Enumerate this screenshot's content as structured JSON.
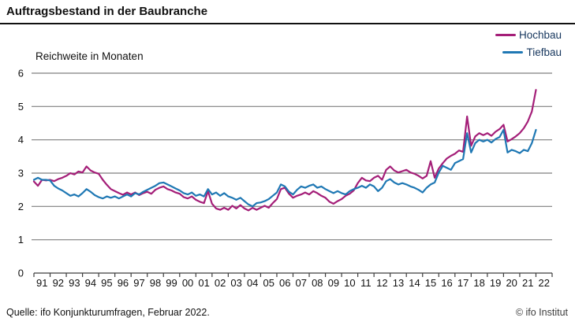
{
  "header": {
    "title": "Auftragsbestand in der Baubranche"
  },
  "axis_title": "Reichweite in Monaten",
  "footer": {
    "source": "Quelle: ifo Konjunkturumfragen, Februar 2022.",
    "copyright": "© ifo Institut"
  },
  "colors": {
    "hochbau": "#a41e78",
    "tiefbau": "#1f78b4",
    "grid": "#7f7f7f",
    "axis": "#3d3d3d",
    "legend_text": "#17375e"
  },
  "chart_data": {
    "type": "line",
    "title": "Auftragsbestand in der Baubranche",
    "xlabel": "",
    "ylabel": "Reichweite in Monaten",
    "ylim": [
      0,
      6
    ],
    "yticks": [
      0,
      1,
      2,
      3,
      4,
      5,
      6
    ],
    "grid": "horizontal",
    "legend_position": "top-right",
    "x_unit": "year (monthly survey, sampled quarterly)",
    "x_start": 1991.0,
    "x_step": 0.25,
    "x_end": 2022.0,
    "categories": [
      "91",
      "92",
      "93",
      "94",
      "95",
      "96",
      "97",
      "98",
      "99",
      "00",
      "01",
      "02",
      "03",
      "04",
      "05",
      "06",
      "07",
      "08",
      "09",
      "10",
      "11",
      "12",
      "13",
      "14",
      "15",
      "16",
      "17",
      "18",
      "19",
      "20",
      "21",
      "22"
    ],
    "series": [
      {
        "name": "Hochbau",
        "color": "#a41e78",
        "values": [
          2.75,
          2.62,
          2.8,
          2.78,
          2.8,
          2.76,
          2.82,
          2.86,
          2.92,
          3.0,
          2.96,
          3.05,
          3.02,
          3.2,
          3.08,
          3.02,
          2.98,
          2.8,
          2.65,
          2.52,
          2.46,
          2.4,
          2.35,
          2.42,
          2.36,
          2.42,
          2.34,
          2.4,
          2.44,
          2.38,
          2.5,
          2.56,
          2.6,
          2.52,
          2.48,
          2.42,
          2.38,
          2.28,
          2.24,
          2.3,
          2.2,
          2.14,
          2.1,
          2.46,
          2.08,
          1.94,
          1.9,
          1.96,
          1.9,
          2.02,
          1.94,
          2.04,
          1.94,
          1.88,
          1.96,
          1.9,
          1.96,
          2.02,
          1.96,
          2.1,
          2.22,
          2.52,
          2.56,
          2.38,
          2.26,
          2.32,
          2.36,
          2.42,
          2.36,
          2.46,
          2.4,
          2.32,
          2.26,
          2.14,
          2.08,
          2.16,
          2.22,
          2.32,
          2.38,
          2.48,
          2.7,
          2.86,
          2.78,
          2.76,
          2.86,
          2.92,
          2.8,
          3.1,
          3.2,
          3.08,
          3.02,
          3.06,
          3.1,
          3.02,
          2.98,
          2.92,
          2.84,
          2.92,
          3.36,
          2.86,
          3.14,
          3.3,
          3.44,
          3.52,
          3.58,
          3.68,
          3.64,
          4.7,
          3.82,
          4.1,
          4.2,
          4.14,
          4.2,
          4.12,
          4.24,
          4.32,
          4.45,
          3.95,
          4.02,
          4.1,
          4.2,
          4.35,
          4.55,
          4.85,
          5.5
        ]
      },
      {
        "name": "Tiefbau",
        "color": "#1f78b4",
        "values": [
          2.8,
          2.86,
          2.8,
          2.8,
          2.78,
          2.62,
          2.54,
          2.48,
          2.4,
          2.32,
          2.36,
          2.3,
          2.4,
          2.52,
          2.44,
          2.34,
          2.28,
          2.24,
          2.3,
          2.26,
          2.3,
          2.24,
          2.3,
          2.36,
          2.3,
          2.4,
          2.36,
          2.44,
          2.5,
          2.56,
          2.62,
          2.7,
          2.72,
          2.66,
          2.6,
          2.54,
          2.48,
          2.4,
          2.36,
          2.42,
          2.32,
          2.36,
          2.3,
          2.52,
          2.36,
          2.42,
          2.32,
          2.4,
          2.3,
          2.26,
          2.2,
          2.26,
          2.16,
          2.06,
          2.0,
          2.1,
          2.12,
          2.16,
          2.22,
          2.32,
          2.42,
          2.66,
          2.6,
          2.44,
          2.36,
          2.5,
          2.6,
          2.56,
          2.62,
          2.66,
          2.56,
          2.6,
          2.52,
          2.46,
          2.4,
          2.46,
          2.4,
          2.36,
          2.46,
          2.52,
          2.56,
          2.62,
          2.56,
          2.66,
          2.6,
          2.46,
          2.56,
          2.76,
          2.82,
          2.72,
          2.66,
          2.7,
          2.66,
          2.6,
          2.56,
          2.5,
          2.42,
          2.56,
          2.66,
          2.72,
          3.02,
          3.22,
          3.16,
          3.1,
          3.3,
          3.36,
          3.42,
          4.2,
          3.62,
          3.9,
          4.0,
          3.95,
          4.0,
          3.92,
          4.02,
          4.08,
          4.3,
          3.62,
          3.7,
          3.66,
          3.6,
          3.7,
          3.66,
          3.9,
          4.3
        ]
      }
    ]
  }
}
